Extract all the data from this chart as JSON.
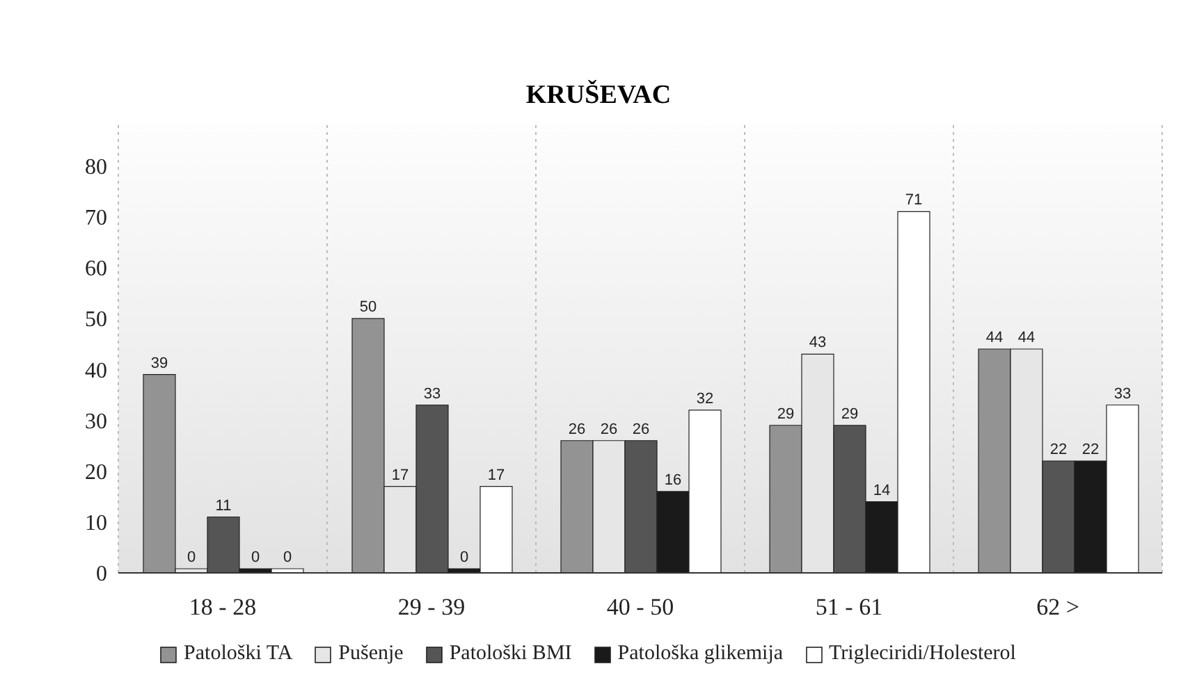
{
  "chart_data": {
    "type": "bar",
    "title": "KRUŠEVAC",
    "categories": [
      "18 - 28",
      "29 - 39",
      "40 - 50",
      "51 - 61",
      "62 >"
    ],
    "series": [
      {
        "name": "Patološki TA",
        "color": "#939393",
        "values": [
          39,
          50,
          26,
          29,
          44
        ]
      },
      {
        "name": "Pušenje",
        "color": "#e6e6e6",
        "values": [
          0,
          17,
          26,
          43,
          44
        ]
      },
      {
        "name": "Patološki BMI",
        "color": "#555555",
        "values": [
          11,
          33,
          26,
          29,
          22
        ]
      },
      {
        "name": "Patološka glikemija",
        "color": "#1a1a1a",
        "values": [
          0,
          0,
          16,
          14,
          22
        ]
      },
      {
        "name": "Trigleciridi/Holesterol",
        "color": "#ffffff",
        "values": [
          0,
          17,
          32,
          71,
          33
        ]
      }
    ],
    "ylim": [
      0,
      88
    ],
    "yticks": [
      0,
      10,
      20,
      30,
      40,
      50,
      60,
      70,
      80
    ],
    "grid": "x",
    "legend": "bottom",
    "data_labels": true
  }
}
